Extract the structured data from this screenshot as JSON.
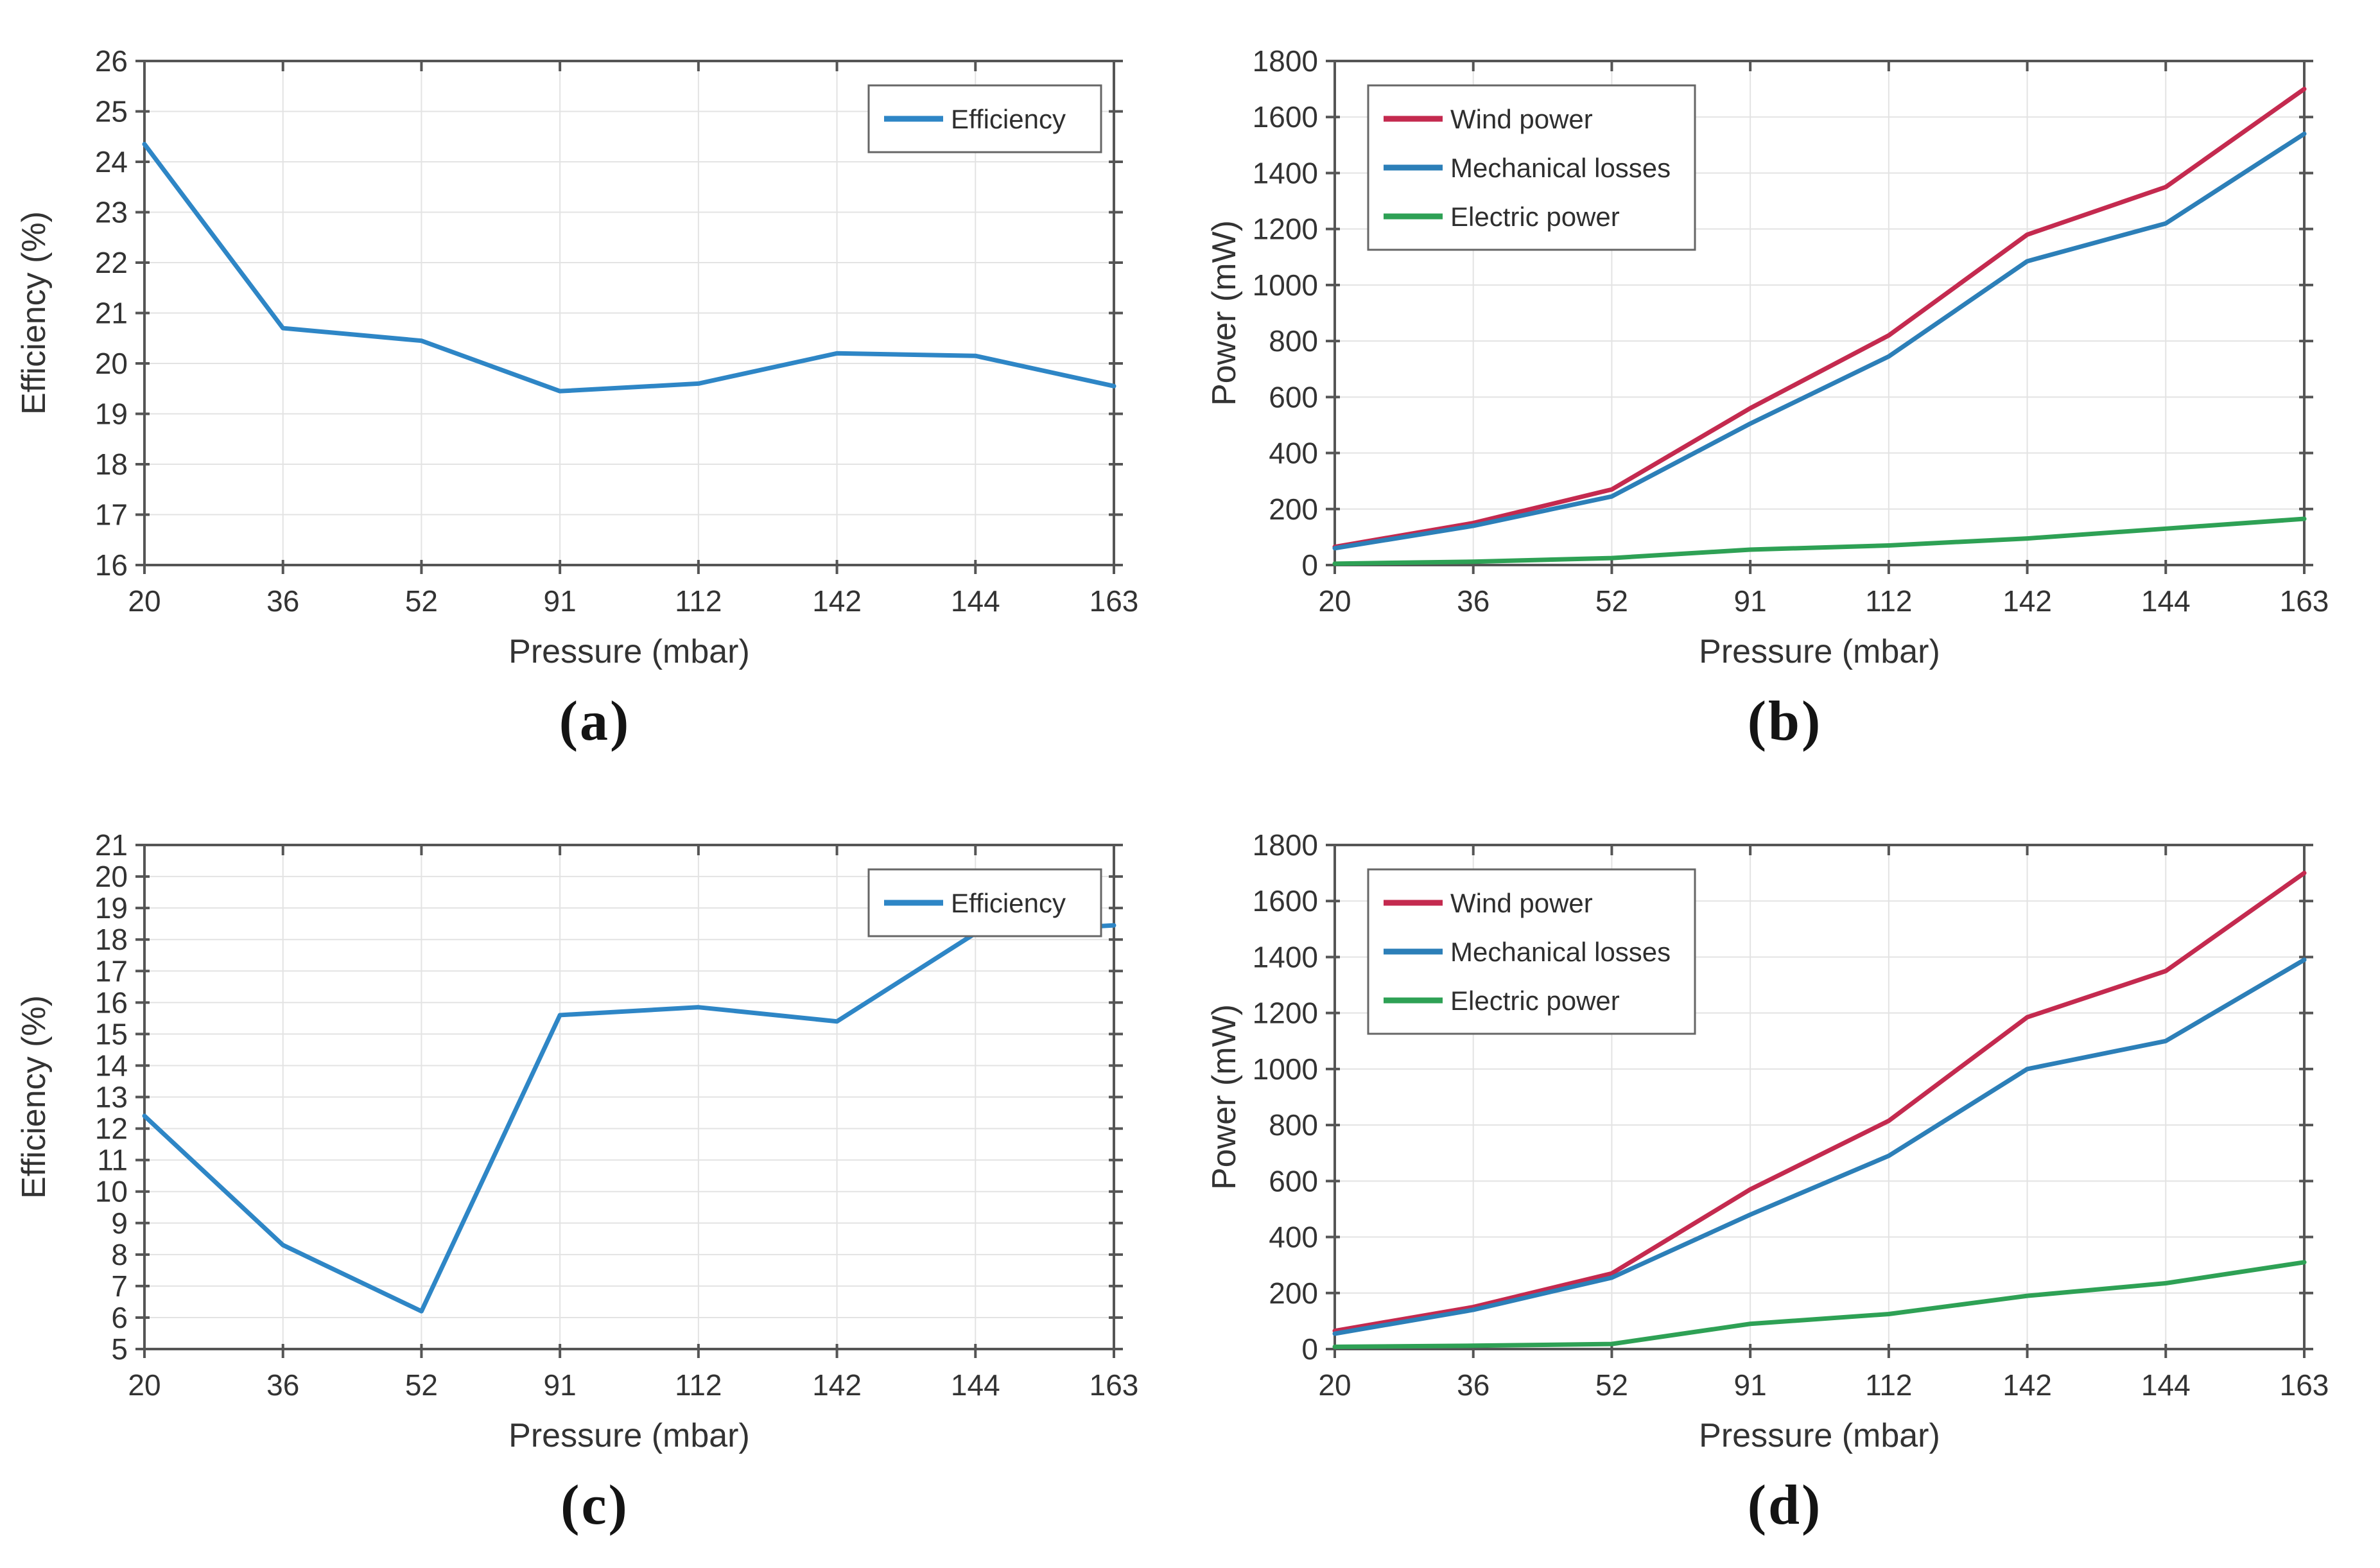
{
  "figure_background": "#ffffff",
  "axis_text_color": "#333333",
  "chart_data": [
    {
      "id": "a",
      "type": "line",
      "caption": "(a)",
      "xlabel": "Pressure (mbar)",
      "ylabel": "Efficiency (%)",
      "x_tick_labels": [
        "20",
        "36",
        "52",
        "91",
        "112",
        "142",
        "144",
        "163"
      ],
      "x_values": [
        20,
        36,
        52,
        91,
        112,
        142,
        144,
        163
      ],
      "ylim": [
        16,
        26
      ],
      "yticks": [
        16,
        17,
        18,
        19,
        20,
        21,
        22,
        23,
        24,
        25,
        26
      ],
      "grid": true,
      "legend_position": "top-right",
      "series": [
        {
          "name": "Efficiency",
          "color": "#2E86C6",
          "values": [
            24.35,
            20.7,
            20.45,
            19.45,
            19.6,
            20.2,
            20.15,
            19.55
          ]
        }
      ]
    },
    {
      "id": "b",
      "type": "line",
      "caption": "(b)",
      "xlabel": "Pressure (mbar)",
      "ylabel": "Power (mW)",
      "x_tick_labels": [
        "20",
        "36",
        "52",
        "91",
        "112",
        "142",
        "144",
        "163"
      ],
      "x_values": [
        20,
        36,
        52,
        91,
        112,
        142,
        144,
        163
      ],
      "ylim": [
        0,
        1800
      ],
      "yticks": [
        0,
        200,
        400,
        600,
        800,
        1000,
        1200,
        1400,
        1600,
        1800
      ],
      "grid": true,
      "legend_position": "top-left",
      "series": [
        {
          "name": "Wind power",
          "color": "#C42A4F",
          "values": [
            65,
            150,
            270,
            560,
            820,
            1180,
            1350,
            1700
          ]
        },
        {
          "name": "Mechanical losses",
          "color": "#2C7FB8",
          "values": [
            60,
            140,
            245,
            505,
            745,
            1085,
            1220,
            1540
          ]
        },
        {
          "name": "Electric power",
          "color": "#2EA155",
          "values": [
            5,
            12,
            25,
            55,
            70,
            95,
            130,
            165
          ]
        }
      ]
    },
    {
      "id": "c",
      "type": "line",
      "caption": "(c)",
      "xlabel": "Pressure (mbar)",
      "ylabel": "Efficiency (%)",
      "x_tick_labels": [
        "20",
        "36",
        "52",
        "91",
        "112",
        "142",
        "144",
        "163"
      ],
      "x_values": [
        20,
        36,
        52,
        91,
        112,
        142,
        144,
        163
      ],
      "ylim": [
        5,
        21
      ],
      "yticks": [
        5,
        6,
        7,
        8,
        9,
        10,
        11,
        12,
        13,
        14,
        15,
        16,
        17,
        18,
        19,
        20,
        21
      ],
      "grid": true,
      "legend_position": "top-right",
      "series": [
        {
          "name": "Efficiency",
          "color": "#2E86C6",
          "values": [
            12.4,
            8.3,
            6.2,
            15.6,
            15.85,
            15.4,
            18.2,
            18.45
          ]
        }
      ]
    },
    {
      "id": "d",
      "type": "line",
      "caption": "(d)",
      "xlabel": "Pressure (mbar)",
      "ylabel": "Power (mW)",
      "x_tick_labels": [
        "20",
        "36",
        "52",
        "91",
        "112",
        "142",
        "144",
        "163"
      ],
      "x_values": [
        20,
        36,
        52,
        91,
        112,
        142,
        144,
        163
      ],
      "ylim": [
        0,
        1800
      ],
      "yticks": [
        0,
        200,
        400,
        600,
        800,
        1000,
        1200,
        1400,
        1600,
        1800
      ],
      "grid": true,
      "legend_position": "top-left",
      "series": [
        {
          "name": "Wind power",
          "color": "#C42A4F",
          "values": [
            65,
            150,
            270,
            570,
            815,
            1185,
            1350,
            1700
          ]
        },
        {
          "name": "Mechanical losses",
          "color": "#2C7FB8",
          "values": [
            55,
            140,
            255,
            480,
            690,
            1000,
            1100,
            1390
          ]
        },
        {
          "name": "Electric power",
          "color": "#2EA155",
          "values": [
            8,
            12,
            18,
            90,
            125,
            190,
            235,
            310
          ]
        }
      ]
    }
  ]
}
